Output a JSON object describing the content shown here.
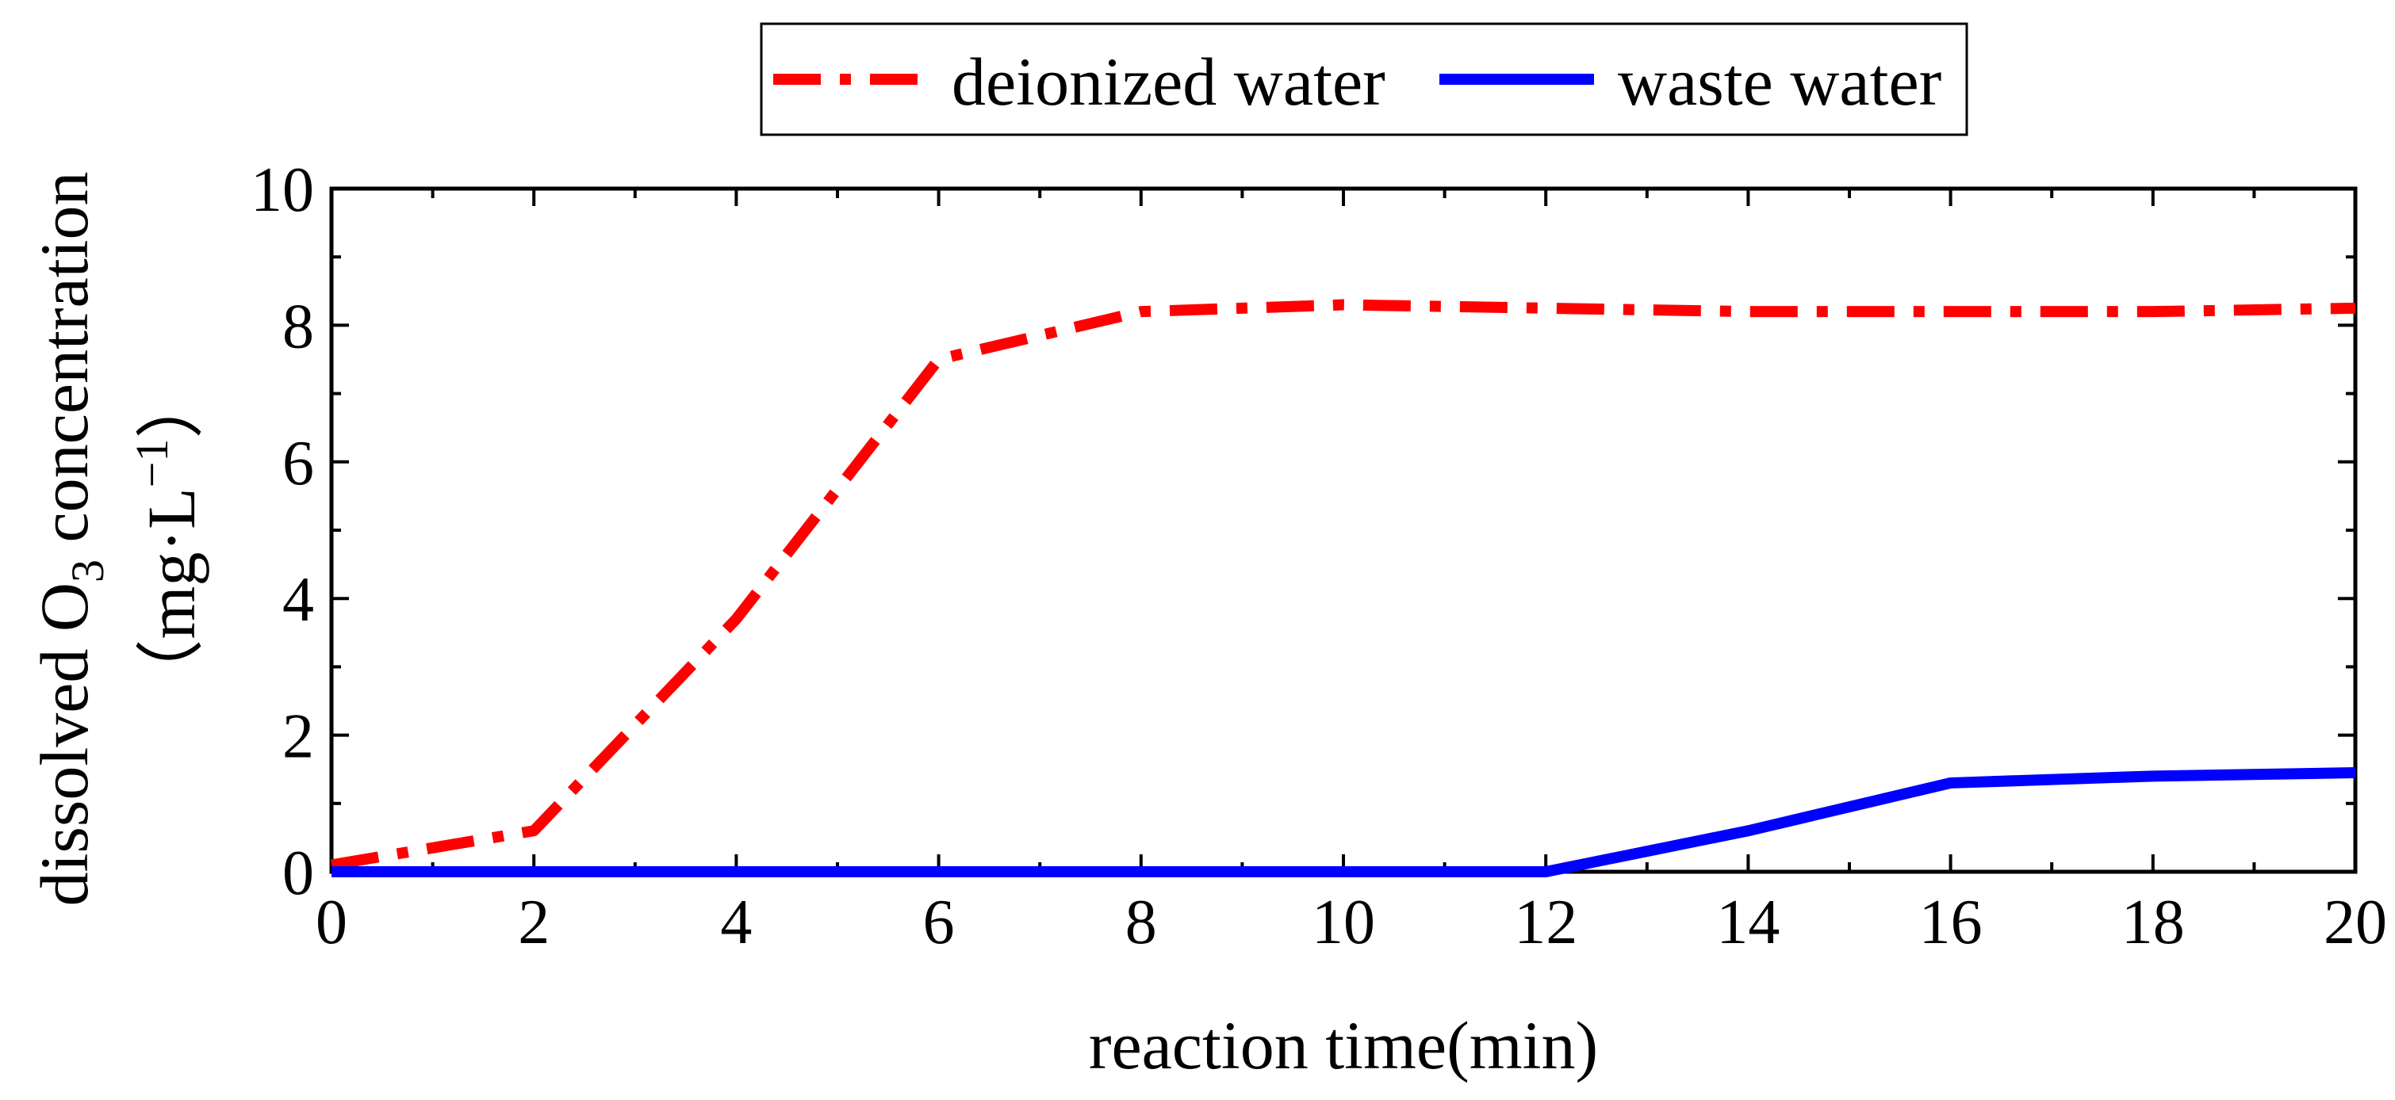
{
  "chart_data": {
    "type": "line",
    "title": "",
    "xlabel": "reaction time(min)",
    "ylabel_line1": "dissolved O",
    "ylabel_sub": "3",
    "ylabel_line1_tail": " concentration",
    "ylabel_line2_open": "（mg·L",
    "ylabel_line2_sup": "−1",
    "ylabel_line2_close": "）",
    "xlim": [
      0,
      20
    ],
    "ylim": [
      0,
      10
    ],
    "x_ticks": [
      0,
      2,
      4,
      6,
      8,
      10,
      12,
      14,
      16,
      18,
      20
    ],
    "y_ticks": [
      0,
      2,
      4,
      6,
      8,
      10
    ],
    "x_tick_labels": [
      "0",
      "2",
      "4",
      "6",
      "8",
      "10",
      "12",
      "14",
      "16",
      "18",
      "20"
    ],
    "y_tick_labels": [
      "0",
      "2",
      "4",
      "6",
      "8",
      "10"
    ],
    "grid": false,
    "legend_position": "top",
    "series": [
      {
        "name": "deionized water",
        "color": "#ff0000",
        "style": "dash-dot",
        "x": [
          0,
          2,
          4,
          6,
          8,
          10,
          12,
          14,
          16,
          18,
          20
        ],
        "y": [
          0.1,
          0.6,
          3.7,
          7.5,
          8.2,
          8.3,
          8.25,
          8.2,
          8.2,
          8.2,
          8.25
        ]
      },
      {
        "name": "waste water",
        "color": "#0000ff",
        "style": "solid",
        "x": [
          0,
          2,
          4,
          6,
          8,
          10,
          12,
          14,
          16,
          18,
          20
        ],
        "y": [
          0,
          0,
          0,
          0,
          0,
          0,
          0,
          0.6,
          1.3,
          1.4,
          1.45
        ]
      }
    ]
  }
}
